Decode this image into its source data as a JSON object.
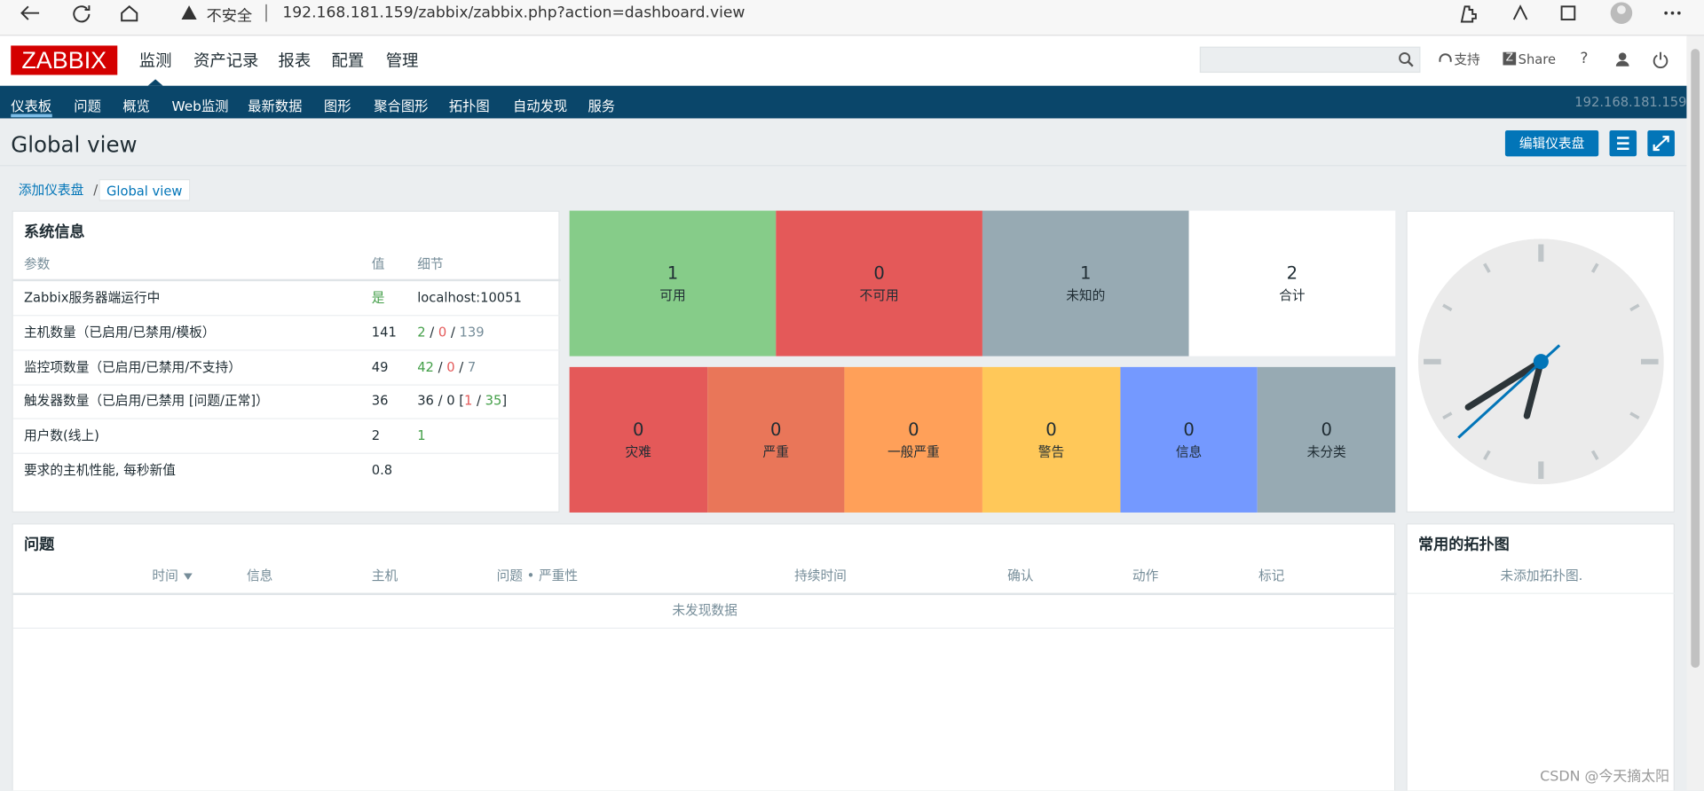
{
  "browser": {
    "warning": "不安全",
    "url": "192.168.181.159/zabbix/zabbix.php?action=dashboard.view"
  },
  "header": {
    "logo": "ZABBIX",
    "menu": [
      "监测",
      "资产记录",
      "报表",
      "配置",
      "管理"
    ],
    "support": "支持",
    "share": "Share",
    "help": "?"
  },
  "subnav": {
    "items": [
      "仪表板",
      "问题",
      "概览",
      "Web监测",
      "最新数据",
      "图形",
      "聚合图形",
      "拓扑图",
      "自动发现",
      "服务"
    ],
    "host": "192.168.181.159"
  },
  "page": {
    "title": "Global view",
    "edit": "编辑仪表盘",
    "breadcrumbs": [
      "添加仪表盘",
      "Global view"
    ],
    "separator": "/"
  },
  "sysinfo": {
    "title": "系统信息",
    "columns": [
      "参数",
      "值",
      "细节"
    ],
    "rows": [
      {
        "param": "Zabbix服务器端运行中",
        "value": "是",
        "value_tone": "green",
        "detail": [
          {
            "text": "localhost:10051",
            "tone": "plain"
          }
        ]
      },
      {
        "param": "主机数量（已启用/已禁用/模板）",
        "value": "141",
        "value_tone": "plain",
        "detail": [
          {
            "text": "2",
            "tone": "green"
          },
          {
            "text": " / ",
            "tone": "plain"
          },
          {
            "text": "0",
            "tone": "red"
          },
          {
            "text": " / ",
            "tone": "plain"
          },
          {
            "text": "139",
            "tone": "gray"
          }
        ]
      },
      {
        "param": "监控项数量（已启用/已禁用/不支持）",
        "value": "49",
        "value_tone": "plain",
        "detail": [
          {
            "text": "42",
            "tone": "green"
          },
          {
            "text": " / ",
            "tone": "plain"
          },
          {
            "text": "0",
            "tone": "red"
          },
          {
            "text": " / ",
            "tone": "plain"
          },
          {
            "text": "7",
            "tone": "gray"
          }
        ]
      },
      {
        "param": "触发器数量（已启用/已禁用 [问题/正常]）",
        "value": "36",
        "value_tone": "plain",
        "detail": [
          {
            "text": "36 / 0 [",
            "tone": "plain"
          },
          {
            "text": "1",
            "tone": "red"
          },
          {
            "text": " / ",
            "tone": "plain"
          },
          {
            "text": "35",
            "tone": "green"
          },
          {
            "text": "]",
            "tone": "plain"
          }
        ]
      },
      {
        "param": "用户数(线上)",
        "value": "2",
        "value_tone": "plain",
        "detail": [
          {
            "text": "1",
            "tone": "green"
          }
        ]
      },
      {
        "param": "要求的主机性能, 每秒新值",
        "value": "0.8",
        "value_tone": "plain",
        "detail": []
      }
    ]
  },
  "hosts": [
    {
      "count": 1,
      "label": "可用",
      "color": "#86cc89"
    },
    {
      "count": 0,
      "label": "不可用",
      "color": "#e45959"
    },
    {
      "count": 1,
      "label": "未知的",
      "color": "#97aab3"
    },
    {
      "count": 2,
      "label": "合计",
      "color": "#ffffff"
    }
  ],
  "severity": [
    {
      "count": 0,
      "label": "灾难",
      "color": "#e45959"
    },
    {
      "count": 0,
      "label": "严重",
      "color": "#e97659"
    },
    {
      "count": 0,
      "label": "一般严重",
      "color": "#ffa059"
    },
    {
      "count": 0,
      "label": "警告",
      "color": "#ffc859"
    },
    {
      "count": 0,
      "label": "信息",
      "color": "#7499ff"
    },
    {
      "count": 0,
      "label": "未分类",
      "color": "#97aab3"
    }
  ],
  "problems": {
    "title": "问题",
    "columns": [
      "时间",
      "信息",
      "主机",
      "问题 • 严重性",
      "持续时间",
      "确认",
      "动作",
      "标记"
    ],
    "empty": "未发现数据"
  },
  "maps": {
    "title": "常用的拓扑图",
    "empty": "未添加拓扑图."
  },
  "watermark": "CSDN @今天摘太阳"
}
